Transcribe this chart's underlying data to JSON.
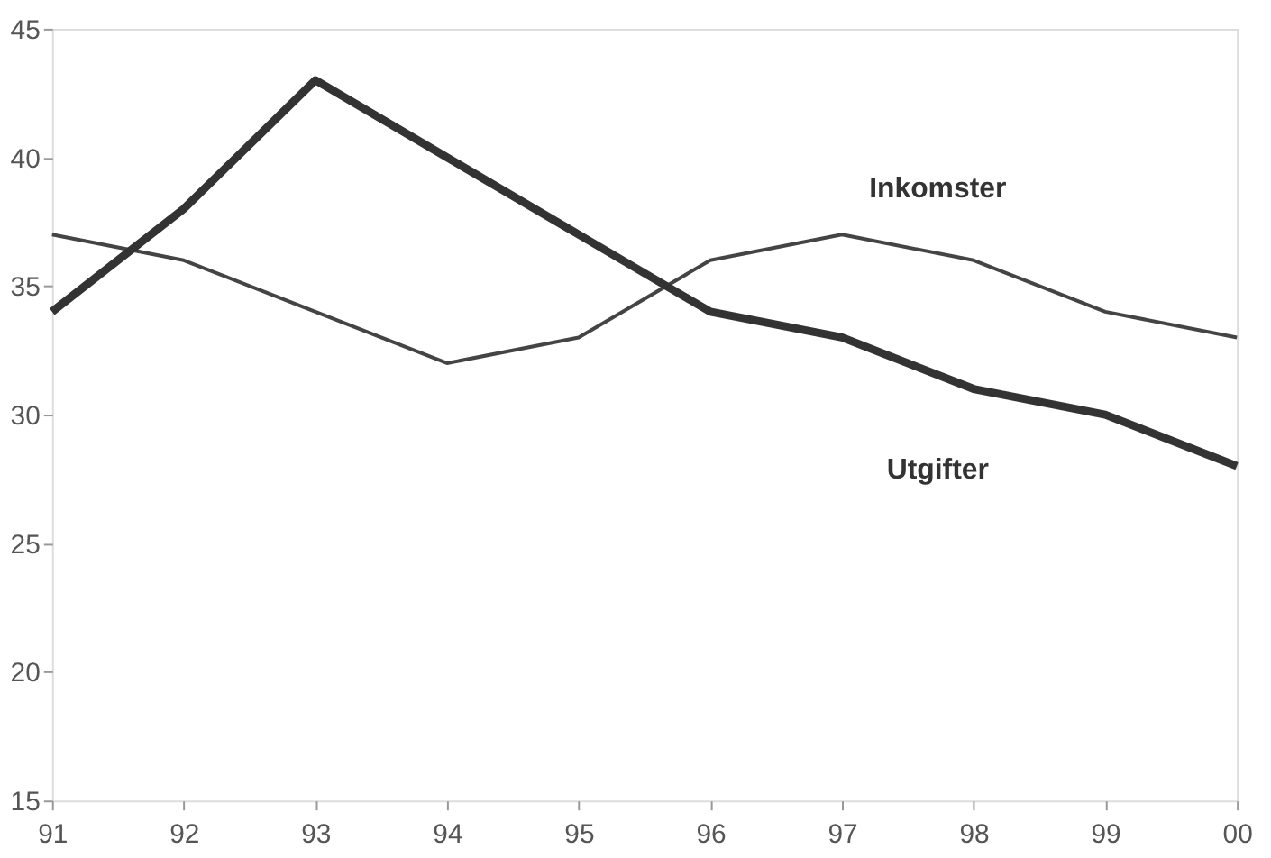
{
  "chart_data": {
    "type": "line",
    "categories": [
      "91",
      "92",
      "93",
      "94",
      "95",
      "96",
      "97",
      "98",
      "99",
      "00"
    ],
    "series": [
      {
        "name": "Inkomster",
        "color": "#444444",
        "values": [
          37,
          36,
          34,
          32,
          33,
          36,
          37,
          36,
          34,
          33
        ]
      },
      {
        "name": "Utgifter",
        "color": "#333333",
        "values": [
          34,
          38,
          43,
          40,
          37,
          34,
          33,
          31,
          30,
          28
        ]
      }
    ],
    "ylim": [
      15,
      45
    ],
    "yticks": [
      15,
      20,
      25,
      30,
      35,
      40,
      45
    ],
    "grid": false,
    "legend": false,
    "marker": "none",
    "line_style": "solid"
  }
}
